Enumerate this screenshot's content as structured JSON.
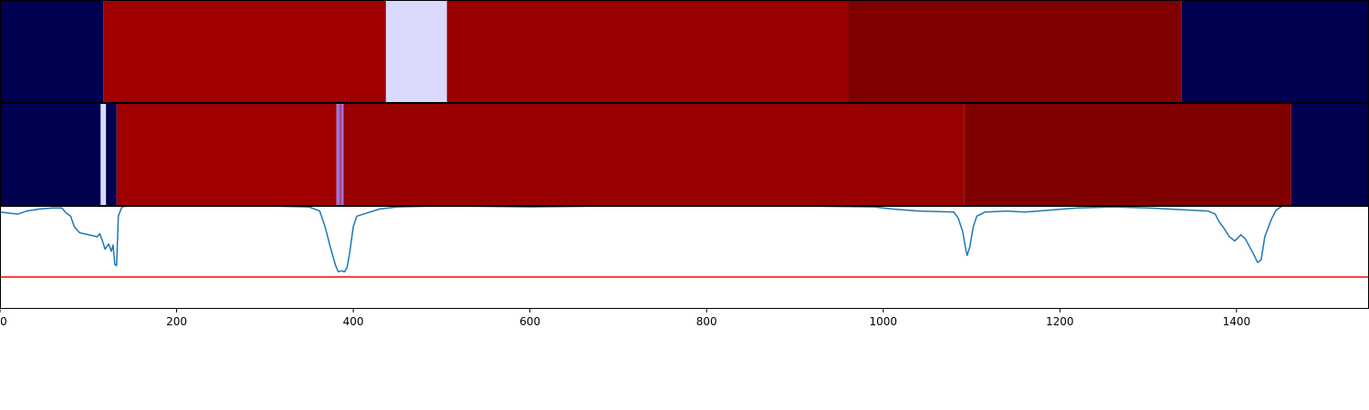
{
  "chart_data": [
    {
      "type": "heatmap",
      "xlim": [
        0,
        1550
      ],
      "segments": [
        {
          "start": 0,
          "end": 117,
          "color": "#000050"
        },
        {
          "start": 117,
          "end": 437,
          "color": "#a00000"
        },
        {
          "start": 437,
          "end": 506,
          "color": "#dadaff"
        },
        {
          "start": 506,
          "end": 960,
          "color": "#990000"
        },
        {
          "start": 960,
          "end": 1338,
          "color": "#800000"
        },
        {
          "start": 1338,
          "end": 1550,
          "color": "#000050"
        }
      ]
    },
    {
      "type": "heatmap",
      "xlim": [
        0,
        1550
      ],
      "segments": [
        {
          "start": 0,
          "end": 114,
          "color": "#000050"
        },
        {
          "start": 114,
          "end": 120,
          "color": "#dadaff"
        },
        {
          "start": 120,
          "end": 132,
          "color": "#000050"
        },
        {
          "start": 132,
          "end": 381,
          "color": "#a00000"
        },
        {
          "start": 381,
          "end": 385,
          "color": "#9d72e0"
        },
        {
          "start": 385,
          "end": 386,
          "color": "#a00000"
        },
        {
          "start": 386,
          "end": 389,
          "color": "#9d72e0"
        },
        {
          "start": 389,
          "end": 1092,
          "color": "#990000"
        },
        {
          "start": 1092,
          "end": 1462,
          "color": "#800000"
        },
        {
          "start": 1462,
          "end": 1550,
          "color": "#000050"
        }
      ]
    },
    {
      "type": "line",
      "xlim": [
        0,
        1550
      ],
      "ylim": [
        0,
        1
      ],
      "grid": false,
      "threshold": {
        "y": 0.31,
        "color": "#ff0000"
      },
      "x_ticks": [
        "0",
        "200",
        "400",
        "600",
        "800",
        "1000",
        "1200",
        "1400"
      ],
      "x_tick_values": [
        0,
        200,
        400,
        600,
        800,
        1000,
        1200,
        1400
      ],
      "series": [
        {
          "color": "#1f77b4",
          "points": [
            [
              0,
              0.94
            ],
            [
              10,
              0.93
            ],
            [
              20,
              0.92
            ],
            [
              30,
              0.95
            ],
            [
              45,
              0.97
            ],
            [
              60,
              0.98
            ],
            [
              70,
              0.98
            ],
            [
              75,
              0.93
            ],
            [
              80,
              0.9
            ],
            [
              84,
              0.8
            ],
            [
              90,
              0.74
            ],
            [
              100,
              0.72
            ],
            [
              110,
              0.7
            ],
            [
              113,
              0.73
            ],
            [
              116,
              0.66
            ],
            [
              119,
              0.58
            ],
            [
              123,
              0.63
            ],
            [
              126,
              0.56
            ],
            [
              128,
              0.62
            ],
            [
              130,
              0.43
            ],
            [
              132,
              0.42
            ],
            [
              134,
              0.9
            ],
            [
              138,
              0.99
            ],
            [
              145,
              1.0
            ],
            [
              200,
              1.0
            ],
            [
              300,
              1.0
            ],
            [
              350,
              0.99
            ],
            [
              362,
              0.95
            ],
            [
              368,
              0.8
            ],
            [
              374,
              0.6
            ],
            [
              380,
              0.42
            ],
            [
              383,
              0.36
            ],
            [
              387,
              0.37
            ],
            [
              390,
              0.36
            ],
            [
              393,
              0.4
            ],
            [
              396,
              0.55
            ],
            [
              400,
              0.8
            ],
            [
              404,
              0.9
            ],
            [
              415,
              0.93
            ],
            [
              430,
              0.97
            ],
            [
              450,
              0.99
            ],
            [
              500,
              1.0
            ],
            [
              600,
              0.99
            ],
            [
              700,
              1.0
            ],
            [
              800,
              1.0
            ],
            [
              900,
              1.0
            ],
            [
              990,
              0.99
            ],
            [
              1010,
              0.97
            ],
            [
              1040,
              0.95
            ],
            [
              1080,
              0.94
            ],
            [
              1085,
              0.88
            ],
            [
              1090,
              0.75
            ],
            [
              1093,
              0.6
            ],
            [
              1095,
              0.52
            ],
            [
              1098,
              0.6
            ],
            [
              1102,
              0.8
            ],
            [
              1106,
              0.9
            ],
            [
              1115,
              0.94
            ],
            [
              1140,
              0.95
            ],
            [
              1160,
              0.94
            ],
            [
              1190,
              0.96
            ],
            [
              1220,
              0.98
            ],
            [
              1260,
              0.99
            ],
            [
              1300,
              0.98
            ],
            [
              1345,
              0.96
            ],
            [
              1368,
              0.95
            ],
            [
              1376,
              0.92
            ],
            [
              1380,
              0.85
            ],
            [
              1386,
              0.78
            ],
            [
              1392,
              0.7
            ],
            [
              1398,
              0.66
            ],
            [
              1405,
              0.72
            ],
            [
              1410,
              0.68
            ],
            [
              1415,
              0.6
            ],
            [
              1420,
              0.52
            ],
            [
              1424,
              0.45
            ],
            [
              1428,
              0.48
            ],
            [
              1432,
              0.7
            ],
            [
              1440,
              0.88
            ],
            [
              1445,
              0.96
            ],
            [
              1452,
              1.0
            ],
            [
              1500,
              1.0
            ],
            [
              1550,
              1.0
            ]
          ]
        }
      ]
    }
  ]
}
